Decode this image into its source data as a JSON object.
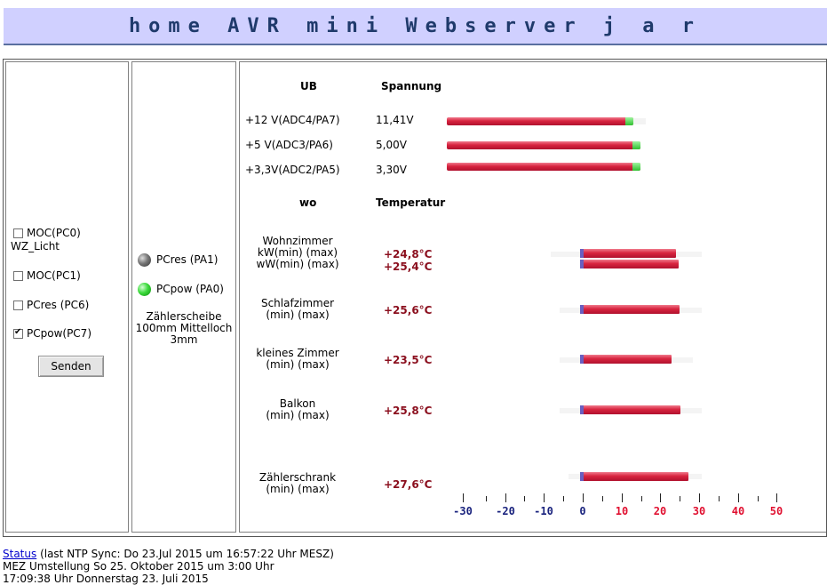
{
  "header": {
    "title": "home AVR mini Webserver j a r"
  },
  "controls": {
    "checkboxes": [
      {
        "label": "MOC(PC0)",
        "sublabel": "WZ_Licht",
        "checked": false
      },
      {
        "label": "MOC(PC1)",
        "checked": false
      },
      {
        "label": "PCres (PC6)",
        "checked": false
      },
      {
        "label": "PCpow(PC7)",
        "checked": true
      }
    ],
    "submit_label": "Senden"
  },
  "leds": {
    "items": [
      {
        "label": "PCres (PA1)",
        "state": "off",
        "color": "#808080"
      },
      {
        "label": "PCpow (PA0)",
        "state": "on",
        "color": "#22cc22"
      }
    ],
    "note_lines": [
      "Zählerscheibe",
      "100mm Mittelloch",
      "3mm"
    ]
  },
  "voltages": {
    "header_ub": "UB",
    "header_spannung": "Spannung",
    "rows": [
      {
        "label": "+12 V(ADC4/PA7)",
        "value": "11,41V",
        "fill": 0.95
      },
      {
        "label": "+5 V(ADC3/PA6)",
        "value": "5,00V",
        "fill": 1.0
      },
      {
        "label": "+3,3V(ADC2/PA5)",
        "value": "3,30V",
        "fill": 1.0
      }
    ]
  },
  "temperatures": {
    "header_wo": "wo",
    "header_temp": "Temperatur",
    "rows": [
      {
        "lines": [
          "Wohnzimmer",
          "kW(min) (max)",
          "wW(min) (max)"
        ],
        "values": [
          "+24,8°C",
          "+25,4°C"
        ],
        "temps": [
          24.8,
          25.4
        ]
      },
      {
        "lines": [
          "Schlafzimmer",
          "(min) (max)"
        ],
        "values": [
          "+25,6°C"
        ],
        "temps": [
          25.6
        ]
      },
      {
        "lines": [
          "kleines Zimmer",
          "(min) (max)"
        ],
        "values": [
          "+23,5°C"
        ],
        "temps": [
          23.5
        ]
      },
      {
        "lines": [
          "Balkon",
          "(min) (max)"
        ],
        "values": [
          "+25,8°C"
        ],
        "temps": [
          25.8
        ]
      },
      {
        "lines": [
          "Zählerschrank",
          "(min) (max)"
        ],
        "values": [
          "+27,6°C"
        ],
        "temps": [
          27.6
        ]
      }
    ],
    "scale": {
      "ticks": [
        "-30",
        "-20",
        "-10",
        "0",
        "10",
        "20",
        "30",
        "40",
        "50"
      ],
      "negative_color": "#1a237e",
      "positive_color": "#e01030"
    }
  },
  "footer": {
    "status_link": "Status",
    "line1_rest": " (last NTP Sync: Do 23.Jul 2015 um 16:57:22 Uhr MESZ)",
    "line2": "MEZ Umstellung So 25. Oktober 2015 um 3:00 Uhr",
    "line3": "17:09:38 Uhr Donnerstag 23. Juli 2015"
  }
}
